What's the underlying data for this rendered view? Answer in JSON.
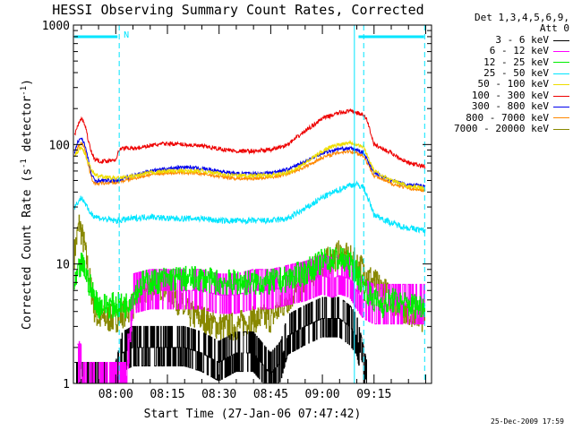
{
  "chart_data": {
    "type": "line",
    "title": "HESSI Observing Summary Count Rates, Corrected",
    "xlabel": "Start Time (27-Jan-06 07:47:42)",
    "ylabel_main": "Corrected Count Rate (s",
    "ylabel_sup1": "-1",
    "ylabel_mid": " detector",
    "ylabel_sup2": "-1",
    "ylabel_end": ")",
    "yscale": "log",
    "ylim": [
      1,
      1000
    ],
    "y_ticks": [
      1,
      10,
      100,
      1000
    ],
    "y_tick_labels": [
      "1",
      "10",
      "100",
      "1000"
    ],
    "xlim_minutes": [
      -12.3,
      91.7
    ],
    "x_ticks": [
      0,
      15,
      30,
      45,
      60,
      75
    ],
    "x_tick_labels": [
      "08:00",
      "08:15",
      "08:30",
      "08:45",
      "09:00",
      "09:15"
    ],
    "legend_header": [
      "Det 1,3,4,5,6,9,",
      "Att 0"
    ],
    "vertical_lines": {
      "dashed": [
        1.0,
        72.0,
        89.7
      ],
      "solid": [
        69.3
      ],
      "color": "#00e5ff"
    },
    "top_bars": [
      [
        -12.0,
        0.5
      ],
      [
        70.5,
        89.5
      ]
    ],
    "top_bar_label": "N",
    "series": [
      {
        "name": "3 - 6 keV",
        "color": "#000000",
        "x": [
          -12,
          -5,
          0,
          1,
          2,
          5,
          10,
          15,
          20,
          25,
          30,
          35,
          40,
          45,
          48,
          50,
          55,
          60,
          63,
          65,
          68,
          70,
          73
        ],
        "y": [
          1,
          1,
          1,
          1.3,
          1.8,
          2,
          2,
          2,
          2,
          1.8,
          1.5,
          1.8,
          1.8,
          1.2,
          1.5,
          2.5,
          3,
          3.5,
          3.5,
          3.5,
          3,
          2.5,
          1
        ]
      },
      {
        "name": "6 - 12 keV",
        "color": "#ff00ff",
        "x": [
          -11,
          -10.5,
          -10,
          -9.5,
          -5,
          0,
          3,
          5,
          10,
          15,
          20,
          25,
          30,
          35,
          40,
          45,
          50,
          55,
          60,
          63,
          65,
          68,
          70,
          72,
          75,
          80,
          85,
          90
        ],
        "y": [
          1.4,
          1.5,
          1.4,
          1,
          1,
          1,
          1,
          5.5,
          6,
          6,
          6,
          6,
          5.5,
          5.5,
          6,
          6,
          6.5,
          7,
          8,
          7.5,
          8,
          7.5,
          6,
          5,
          4.5,
          4.5,
          4.5,
          4.5
        ]
      },
      {
        "name": "12 - 25 keV",
        "color": "#00ee00",
        "x": [
          -12,
          -11,
          -10,
          -9,
          -7,
          -5,
          0,
          3,
          5,
          8,
          10,
          15,
          20,
          25,
          30,
          35,
          40,
          45,
          50,
          55,
          58,
          60,
          63,
          65,
          68,
          70,
          72,
          75,
          78,
          80,
          85,
          90
        ],
        "y": [
          6,
          8,
          10,
          9,
          6,
          4.5,
          4.5,
          4.5,
          5.5,
          7,
          7,
          7.5,
          7.5,
          7.5,
          7,
          7,
          7,
          7,
          7.5,
          8.5,
          9.5,
          10.5,
          11,
          11,
          10,
          8.5,
          6.5,
          5,
          4.5,
          5,
          4.5,
          4.5
        ]
      },
      {
        "name": "25 - 50 keV",
        "color": "#00e5ff",
        "x": [
          -12,
          -11,
          -10,
          -9,
          -8,
          -6,
          -4,
          0,
          5,
          10,
          15,
          20,
          25,
          30,
          35,
          40,
          45,
          50,
          55,
          60,
          65,
          68,
          70,
          72,
          75,
          80,
          85,
          90
        ],
        "y": [
          30,
          33,
          36,
          33,
          28,
          25,
          24,
          23,
          24,
          25,
          24,
          24,
          24,
          23,
          23,
          23,
          23,
          24,
          29,
          36,
          42,
          46,
          46,
          44,
          26,
          22,
          20,
          19
        ]
      },
      {
        "name": "50 - 100 keV",
        "color": "#eedd00",
        "x": [
          -12,
          -11,
          -10,
          -9,
          -8,
          -6,
          0,
          5,
          10,
          15,
          20,
          25,
          30,
          35,
          40,
          45,
          50,
          55,
          60,
          62,
          65,
          68,
          70,
          72,
          75,
          80,
          85,
          90
        ],
        "y": [
          80,
          88,
          95,
          85,
          70,
          55,
          52,
          54,
          58,
          60,
          60,
          60,
          57,
          55,
          55,
          55,
          58,
          70,
          88,
          95,
          100,
          105,
          100,
          95,
          60,
          50,
          45,
          43
        ]
      },
      {
        "name": "100 - 300 keV",
        "color": "#ee0000",
        "x": [
          -12,
          -11,
          -10,
          -9,
          -8,
          -7,
          -6,
          -4,
          0,
          1,
          3,
          5,
          10,
          15,
          20,
          25,
          30,
          35,
          40,
          45,
          50,
          55,
          60,
          65,
          68,
          70,
          72,
          73,
          75,
          80,
          85,
          90
        ],
        "y": [
          120,
          145,
          165,
          150,
          110,
          85,
          75,
          72,
          75,
          90,
          95,
          92,
          98,
          102,
          100,
          97,
          92,
          88,
          88,
          90,
          100,
          130,
          165,
          185,
          190,
          185,
          175,
          160,
          100,
          85,
          70,
          65
        ]
      },
      {
        "name": "300 - 800 keV",
        "color": "#0000ee",
        "x": [
          -12,
          -11,
          -10,
          -9,
          -8,
          -7,
          -6,
          0,
          5,
          10,
          15,
          20,
          25,
          30,
          35,
          40,
          45,
          50,
          55,
          60,
          65,
          68,
          70,
          72,
          75,
          80,
          85,
          90
        ],
        "y": [
          85,
          105,
          115,
          100,
          75,
          55,
          50,
          50,
          55,
          60,
          63,
          65,
          63,
          60,
          57,
          57,
          58,
          62,
          72,
          85,
          92,
          93,
          90,
          85,
          58,
          50,
          46,
          45
        ]
      },
      {
        "name": "800 - 7000 keV",
        "color": "#ff8800",
        "x": [
          -12,
          -11,
          -10,
          -9,
          -8,
          -7,
          -6,
          0,
          5,
          10,
          15,
          20,
          25,
          30,
          35,
          40,
          45,
          50,
          55,
          60,
          65,
          68,
          70,
          72,
          75,
          80,
          85,
          90
        ],
        "y": [
          78,
          95,
          105,
          92,
          68,
          52,
          47,
          48,
          52,
          56,
          58,
          58,
          57,
          54,
          52,
          52,
          53,
          57,
          65,
          78,
          86,
          88,
          85,
          80,
          55,
          47,
          43,
          41
        ]
      },
      {
        "name": "7000 - 20000 keV",
        "color": "#888800",
        "x": [
          -12,
          -11,
          -10.5,
          -10,
          -9,
          -8,
          -7,
          -6,
          -5,
          0,
          3,
          5,
          8,
          10,
          15,
          18,
          20,
          25,
          30,
          35,
          40,
          45,
          50,
          55,
          58,
          60,
          63,
          65,
          68,
          70,
          72,
          75,
          78,
          80,
          85,
          90
        ],
        "y": [
          12,
          18,
          22,
          19,
          14,
          9,
          6,
          4,
          3.5,
          3.5,
          4,
          4.5,
          5.5,
          6.5,
          6.5,
          5,
          4,
          3.5,
          3,
          3,
          3.5,
          3.5,
          5,
          7,
          9,
          10,
          11,
          12,
          11,
          10,
          9,
          7,
          6,
          5,
          4,
          3.5
        ]
      }
    ]
  },
  "timestamp": "25-Dec-2009 17:59"
}
